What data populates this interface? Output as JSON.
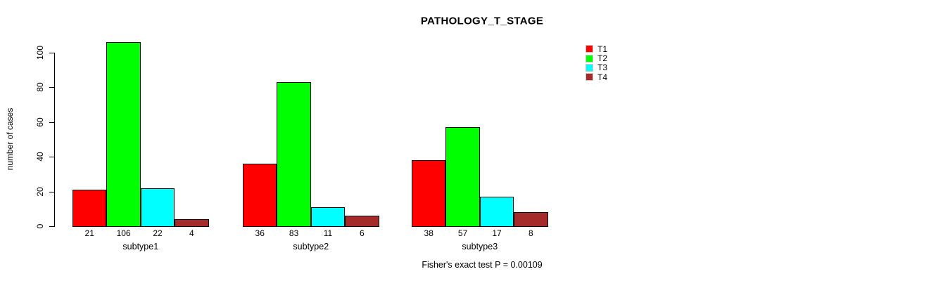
{
  "chart_data": {
    "type": "bar",
    "title": "PATHOLOGY_T_STAGE",
    "ylabel": "number of cases",
    "xlabel": "",
    "categories": [
      "subtype1",
      "subtype2",
      "subtype3"
    ],
    "series": [
      {
        "name": "T1",
        "color": "#FF0000",
        "values": [
          21,
          36,
          38
        ]
      },
      {
        "name": "T2",
        "color": "#00FF00",
        "values": [
          106,
          83,
          57
        ]
      },
      {
        "name": "T3",
        "color": "#00FFFF",
        "values": [
          22,
          11,
          17
        ]
      },
      {
        "name": "T4",
        "color": "#A52A2A",
        "values": [
          4,
          6,
          8
        ]
      }
    ],
    "bar_value_labels_shown": true,
    "yticks": [
      0,
      20,
      40,
      60,
      80,
      100
    ],
    "ylim": [
      0,
      106
    ],
    "grid": false,
    "legend_position": "top-right",
    "annotation": "Fisher's exact test P = 0.00109"
  }
}
